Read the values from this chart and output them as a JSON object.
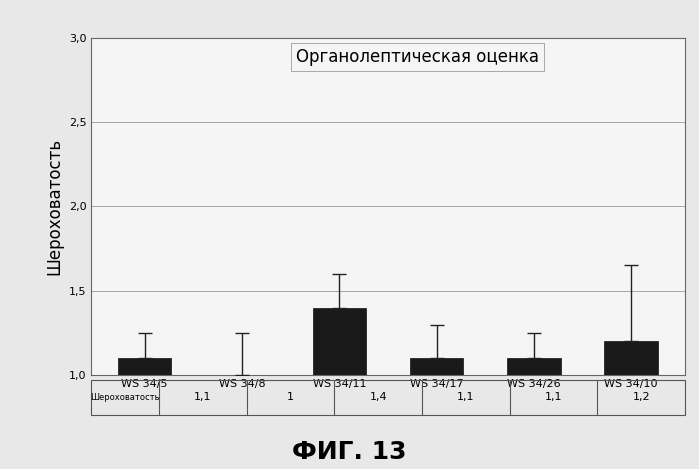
{
  "title": "Органолептическая оценка",
  "ylabel": "Шероховатость",
  "categories": [
    "WS 34/5",
    "WS 34/8",
    "WS 34/11",
    "WS 34/17",
    "WS 34/26",
    "WS 34/10"
  ],
  "values": [
    1.1,
    1.0,
    1.4,
    1.1,
    1.1,
    1.2
  ],
  "errors": [
    0.15,
    0.25,
    0.2,
    0.2,
    0.15,
    0.45
  ],
  "bar_color": "#1a1a1a",
  "ylim": [
    1.0,
    3.0
  ],
  "yticks": [
    1.0,
    1.5,
    2.0,
    2.5,
    3.0
  ],
  "ytick_labels": [
    "1,0",
    "1,5",
    "2,0",
    "2,5",
    "3,0"
  ],
  "table_row_label": "Шероховатость",
  "table_values": [
    "1,1",
    "1",
    "1,4",
    "1,1",
    "1,1",
    "1,2"
  ],
  "fig_label": "ФИГ. 13",
  "background_color": "#e8e8e8",
  "plot_bg_color": "#f5f5f5",
  "title_fontsize": 12,
  "ylabel_fontsize": 12,
  "tick_fontsize": 8,
  "table_fontsize": 8,
  "fig_label_fontsize": 18
}
